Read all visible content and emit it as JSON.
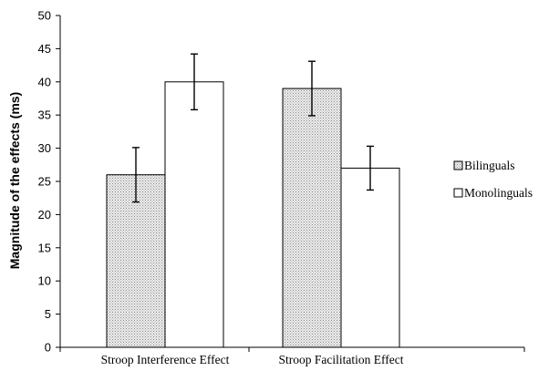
{
  "chart_data": {
    "type": "bar",
    "title": "",
    "xlabel": "",
    "ylabel": "Magnitude of the effects (ms)",
    "ylim": [
      0,
      50
    ],
    "yticks": [
      0,
      5,
      10,
      15,
      20,
      25,
      30,
      35,
      40,
      45,
      50
    ],
    "grid": false,
    "legend_position": "right",
    "categories": [
      "Stroop Interference Effect",
      "Stroop Facilitation Effect"
    ],
    "series": [
      {
        "name": "Bilinguals",
        "values": [
          26,
          39
        ],
        "error": [
          4.1,
          4.1
        ],
        "pattern": "dotted"
      },
      {
        "name": "Monolinguals",
        "values": [
          40,
          27
        ],
        "error": [
          4.2,
          3.3
        ],
        "pattern": "white"
      }
    ]
  },
  "colors": {
    "bilinguals_fill": "#cfcfcf",
    "monolinguals_fill": "#ffffff",
    "stroke": "#000000"
  }
}
